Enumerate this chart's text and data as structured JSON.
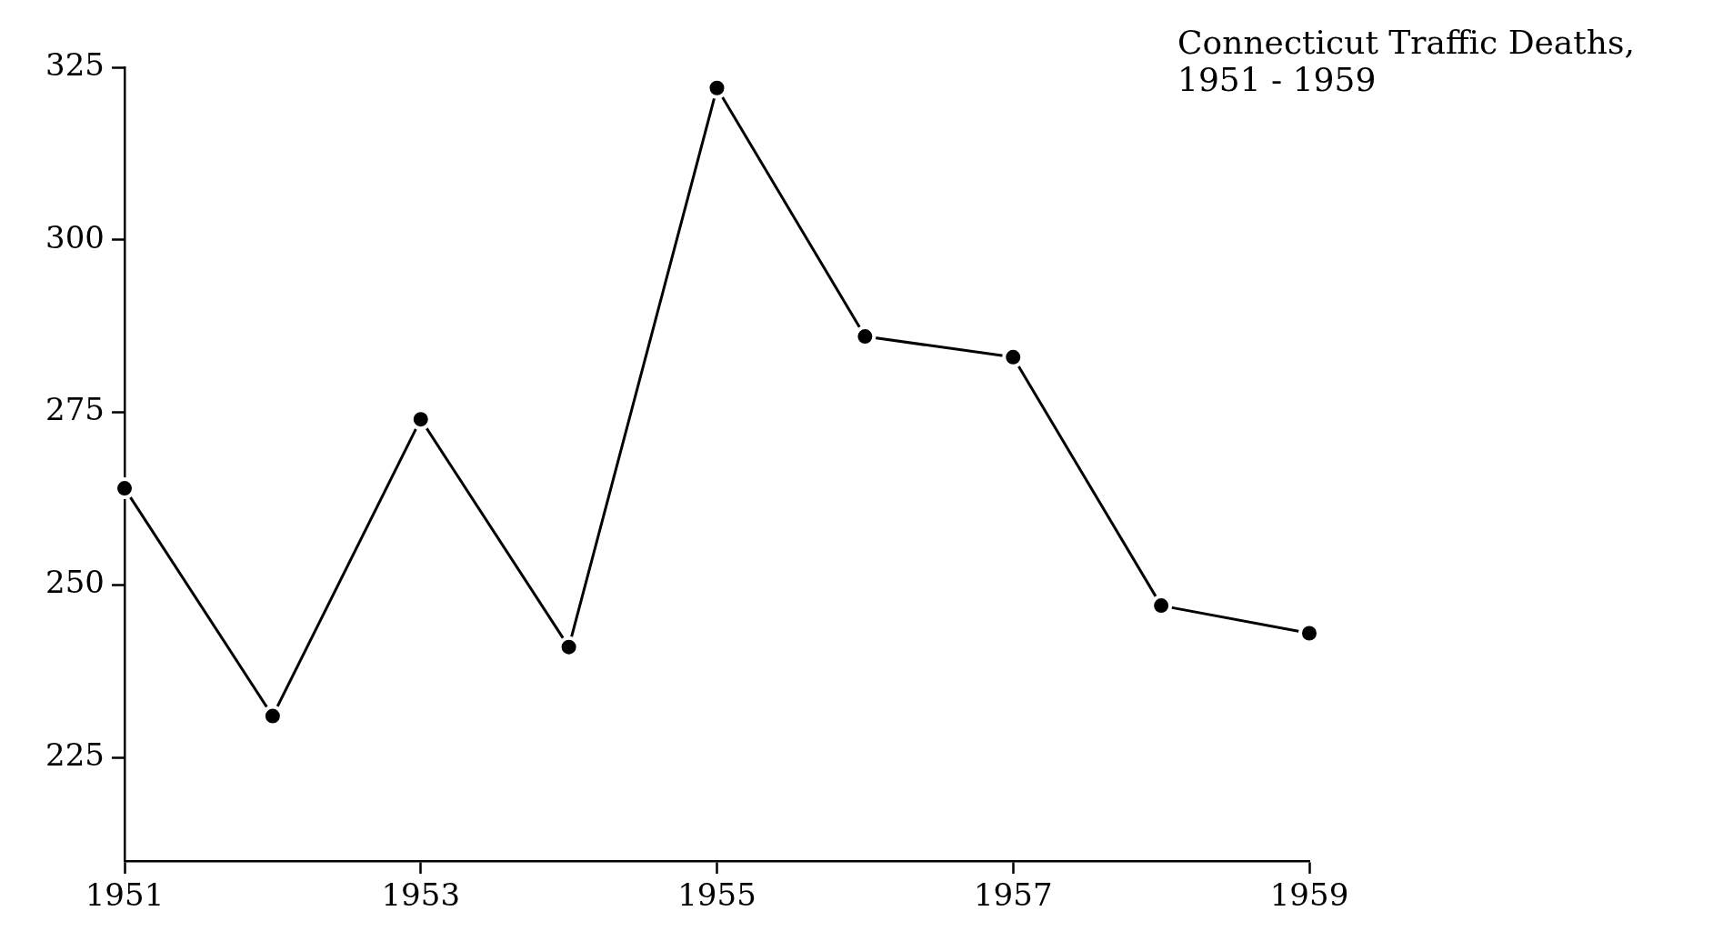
{
  "chart_data": {
    "type": "line",
    "title": "Connecticut Traffic Deaths,\n1951 - 1959",
    "x": [
      1951,
      1952,
      1953,
      1954,
      1955,
      1956,
      1957,
      1958,
      1959
    ],
    "series": [
      {
        "color": "#000000",
        "values": [
          264,
          231,
          274,
          241,
          322,
          286,
          283,
          247,
          243
        ]
      }
    ],
    "xlim": [
      1951,
      1959
    ],
    "xticks": [
      1951,
      1953,
      1955,
      1957,
      1959
    ],
    "ylim": [
      210,
      325
    ],
    "yticks": [
      225,
      250,
      275,
      300,
      325
    ],
    "grid": false,
    "legend": false,
    "marker": "circle",
    "line_style": "solid"
  }
}
